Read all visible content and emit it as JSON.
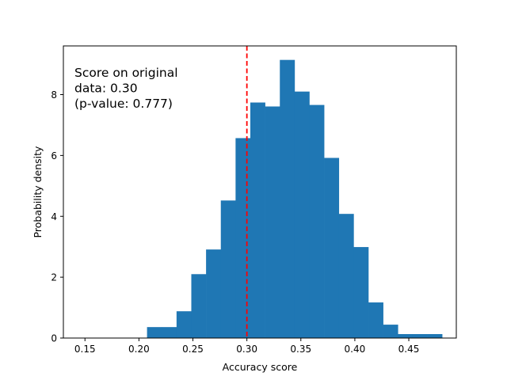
{
  "chart_data": {
    "type": "bar",
    "subtype": "histogram",
    "title": "",
    "xlabel": "Accuracy score",
    "ylabel": "Probability density",
    "xlim": [
      0.13,
      0.494
    ],
    "ylim": [
      0,
      9.6
    ],
    "xticks": [
      0.15,
      0.2,
      0.25,
      0.3,
      0.35,
      0.4,
      0.45
    ],
    "xtick_labels": [
      "0.15",
      "0.20",
      "0.25",
      "0.30",
      "0.35",
      "0.40",
      "0.45"
    ],
    "yticks": [
      0,
      2,
      4,
      6,
      8
    ],
    "ytick_labels": [
      "0",
      "2",
      "4",
      "6",
      "8"
    ],
    "grid": false,
    "legend": null,
    "bar_color": "#1f77b4",
    "bin_width": 0.01367,
    "bin_edges_start": 0.2075,
    "values_note": "Bar heights estimated from pixel positions; bins 1-2 and the final three tail bins (18-20) were not verified individually.",
    "values": [
      0.36,
      0.36,
      0.88,
      2.1,
      2.91,
      4.52,
      6.57,
      7.74,
      7.61,
      9.14,
      8.1,
      7.66,
      5.92,
      4.08,
      2.99,
      1.17,
      0.44,
      0.13,
      0.13,
      0.13
    ],
    "reference_line": {
      "x": 0.3,
      "color": "#ff0000",
      "style": "dashed",
      "label": "Score on original data"
    },
    "annotation": {
      "lines": [
        "Score on original",
        "data: 0.30",
        "(p-value: 0.777)"
      ],
      "score": 0.3,
      "p_value": 0.777
    }
  }
}
